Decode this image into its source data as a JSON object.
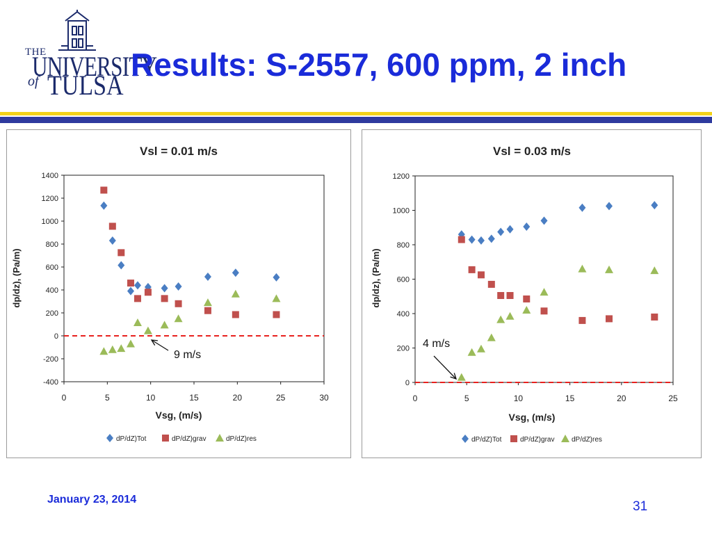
{
  "logo": {
    "line1": "THE",
    "line2": "UNIVERSITY",
    "line3": "of",
    "line4": "TULSA"
  },
  "slide": {
    "title": "Results: S-2557, 600 ppm, 2 inch",
    "footer_date": "January 23, 2014",
    "page_number": "31"
  },
  "colors": {
    "title": "#1a2bd9",
    "rule_yellow": "#f2d21a",
    "rule_blue": "#2e3a9e",
    "tot": "#4a7ec3",
    "grav": "#c0504d",
    "res": "#9bbb59",
    "ref_line": "#e8201d"
  },
  "chart_data": [
    {
      "type": "scatter",
      "title": "Vsl = 0.01 m/s",
      "xlabel": "Vsg, (m/s)",
      "ylabel": "dp/dz), (Pa/m)",
      "xlim": [
        0,
        30
      ],
      "ylim": [
        -400,
        1400
      ],
      "xticks": [
        0,
        5,
        10,
        15,
        20,
        25,
        30
      ],
      "yticks": [
        -400,
        -200,
        0,
        200,
        400,
        600,
        800,
        1000,
        1200,
        1400
      ],
      "grid": false,
      "legend_position": "bottom",
      "reference_line": {
        "y": 0,
        "style": "dashed"
      },
      "annotation": {
        "text": "9 m/s",
        "x": 9.3,
        "y": 0
      },
      "series": [
        {
          "name": "dP/dZ)Tot",
          "marker": "diamond",
          "x": [
            4.6,
            5.6,
            6.6,
            7.7,
            8.5,
            9.7,
            11.6,
            13.2,
            16.6,
            19.8,
            24.5
          ],
          "y": [
            1135,
            830,
            615,
            390,
            440,
            425,
            415,
            430,
            515,
            550,
            510
          ]
        },
        {
          "name": "dP/dZ)grav",
          "marker": "square",
          "x": [
            4.6,
            5.6,
            6.6,
            7.7,
            8.5,
            9.7,
            11.6,
            13.2,
            16.6,
            19.8,
            24.5
          ],
          "y": [
            1270,
            955,
            725,
            460,
            325,
            380,
            325,
            280,
            220,
            185,
            185
          ]
        },
        {
          "name": "dP/dZ)res",
          "marker": "triangle",
          "x": [
            4.6,
            5.6,
            6.6,
            7.7,
            8.5,
            9.7,
            11.6,
            13.2,
            16.6,
            19.8,
            24.5
          ],
          "y": [
            -135,
            -120,
            -110,
            -70,
            115,
            45,
            95,
            150,
            290,
            365,
            325
          ]
        }
      ]
    },
    {
      "type": "scatter",
      "title": "Vsl = 0.03 m/s",
      "xlabel": "Vsg, (m/s)",
      "ylabel": "dp/dz), (Pa/m)",
      "xlim": [
        0,
        25
      ],
      "ylim": [
        0,
        1200
      ],
      "xticks": [
        0,
        5,
        10,
        15,
        20,
        25
      ],
      "yticks": [
        0,
        200,
        400,
        600,
        800,
        1000,
        1200
      ],
      "grid": false,
      "legend_position": "bottom",
      "reference_line": {
        "y": 0,
        "style": "dashed"
      },
      "annotation": {
        "text": "4 m/s",
        "x": 4.5,
        "y": 20
      },
      "series": [
        {
          "name": "dP/dZ)Tot",
          "marker": "diamond",
          "x": [
            4.5,
            5.5,
            6.4,
            7.4,
            8.3,
            9.2,
            10.8,
            12.5,
            16.2,
            18.8,
            23.2
          ],
          "y": [
            860,
            830,
            825,
            835,
            875,
            890,
            905,
            940,
            1015,
            1025,
            1030
          ]
        },
        {
          "name": "dP/dZ)grav",
          "marker": "square",
          "x": [
            4.5,
            5.5,
            6.4,
            7.4,
            8.3,
            9.2,
            10.8,
            12.5,
            16.2,
            18.8,
            23.2
          ],
          "y": [
            830,
            655,
            625,
            570,
            505,
            505,
            485,
            415,
            360,
            370,
            380
          ]
        },
        {
          "name": "dP/dZ)res",
          "marker": "triangle",
          "x": [
            4.5,
            5.5,
            6.4,
            7.4,
            8.3,
            9.2,
            10.8,
            12.5,
            16.2,
            18.8,
            23.2
          ],
          "y": [
            30,
            175,
            195,
            260,
            365,
            385,
            420,
            525,
            660,
            655,
            650
          ]
        }
      ]
    }
  ]
}
